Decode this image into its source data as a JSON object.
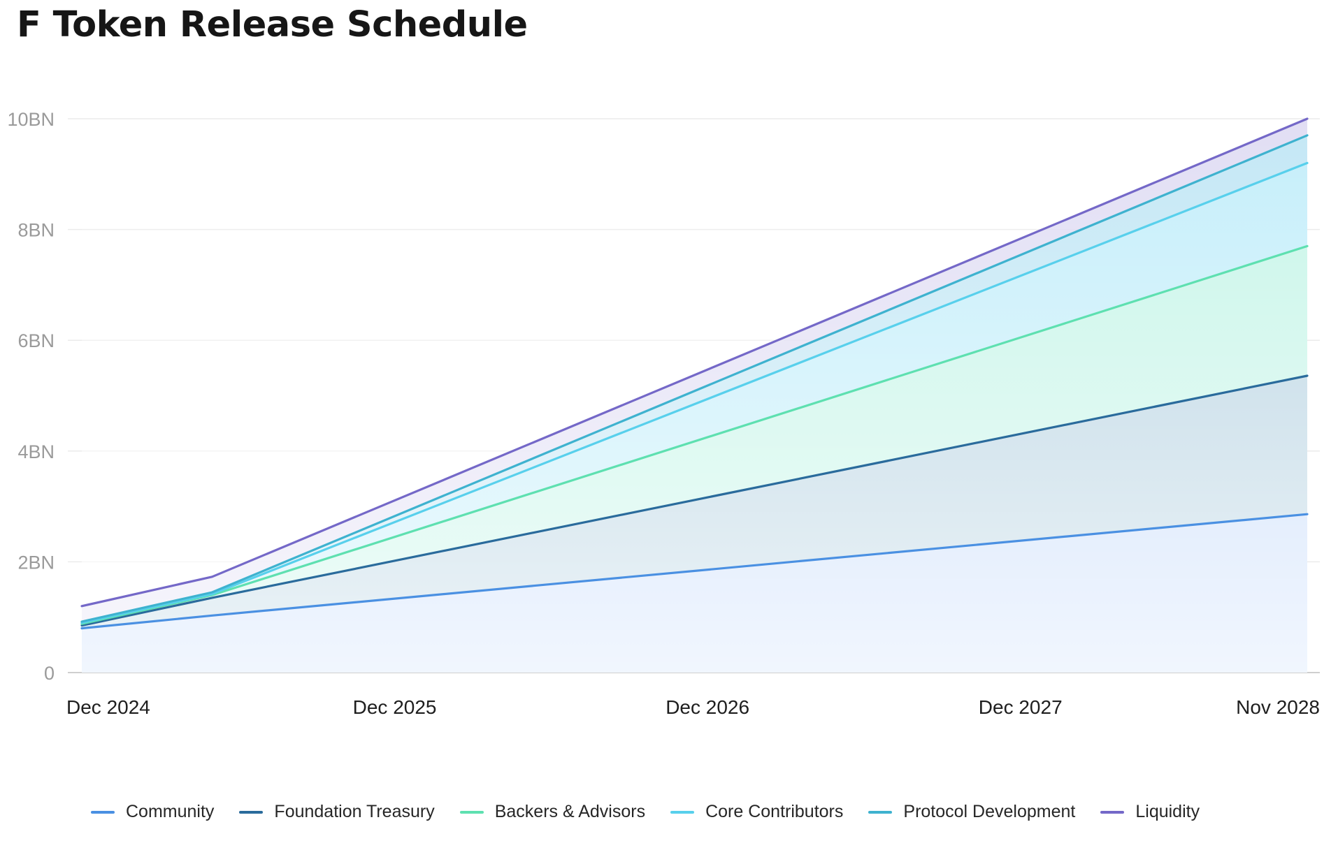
{
  "page": {
    "title": "F Token Release Schedule"
  },
  "chart_data": {
    "type": "area",
    "stacked": true,
    "title": "F Token Release Schedule",
    "xlabel": "",
    "ylabel": "",
    "x_ticks": [
      "Dec 2024",
      "Dec 2025",
      "Dec 2026",
      "Dec 2027",
      "Nov 2028"
    ],
    "y_ticks": [
      "0",
      "2BN",
      "4BN",
      "6BN",
      "8BN",
      "10BN"
    ],
    "ylim": [
      0,
      10
    ],
    "y_unit": "BN",
    "grid": true,
    "legend_position": "bottom",
    "x": [
      "2024-12",
      "2025-05",
      "2028-11"
    ],
    "series": [
      {
        "name": "Community",
        "color": "#4a90e2",
        "fill": "#c9dcff",
        "values": [
          0.8,
          1.03,
          2.86
        ]
      },
      {
        "name": "Foundation Treasury",
        "color": "#2a6b9c",
        "fill": "#b4cde0",
        "values": [
          0.85,
          1.35,
          5.36
        ]
      },
      {
        "name": "Backers & Advisors",
        "color": "#5ee0b0",
        "fill": "#c7f6e4",
        "values": [
          0.88,
          1.4,
          7.7
        ]
      },
      {
        "name": "Core Contributors",
        "color": "#58d0ec",
        "fill": "#c4eefa",
        "values": [
          0.9,
          1.42,
          9.2
        ]
      },
      {
        "name": "Protocol Development",
        "color": "#3eb2cf",
        "fill": "#bde9f4",
        "values": [
          0.92,
          1.45,
          9.7
        ]
      },
      {
        "name": "Liquidity",
        "color": "#7468c8",
        "fill": "#dcd8f2",
        "values": [
          1.2,
          1.73,
          10.0
        ]
      }
    ]
  }
}
